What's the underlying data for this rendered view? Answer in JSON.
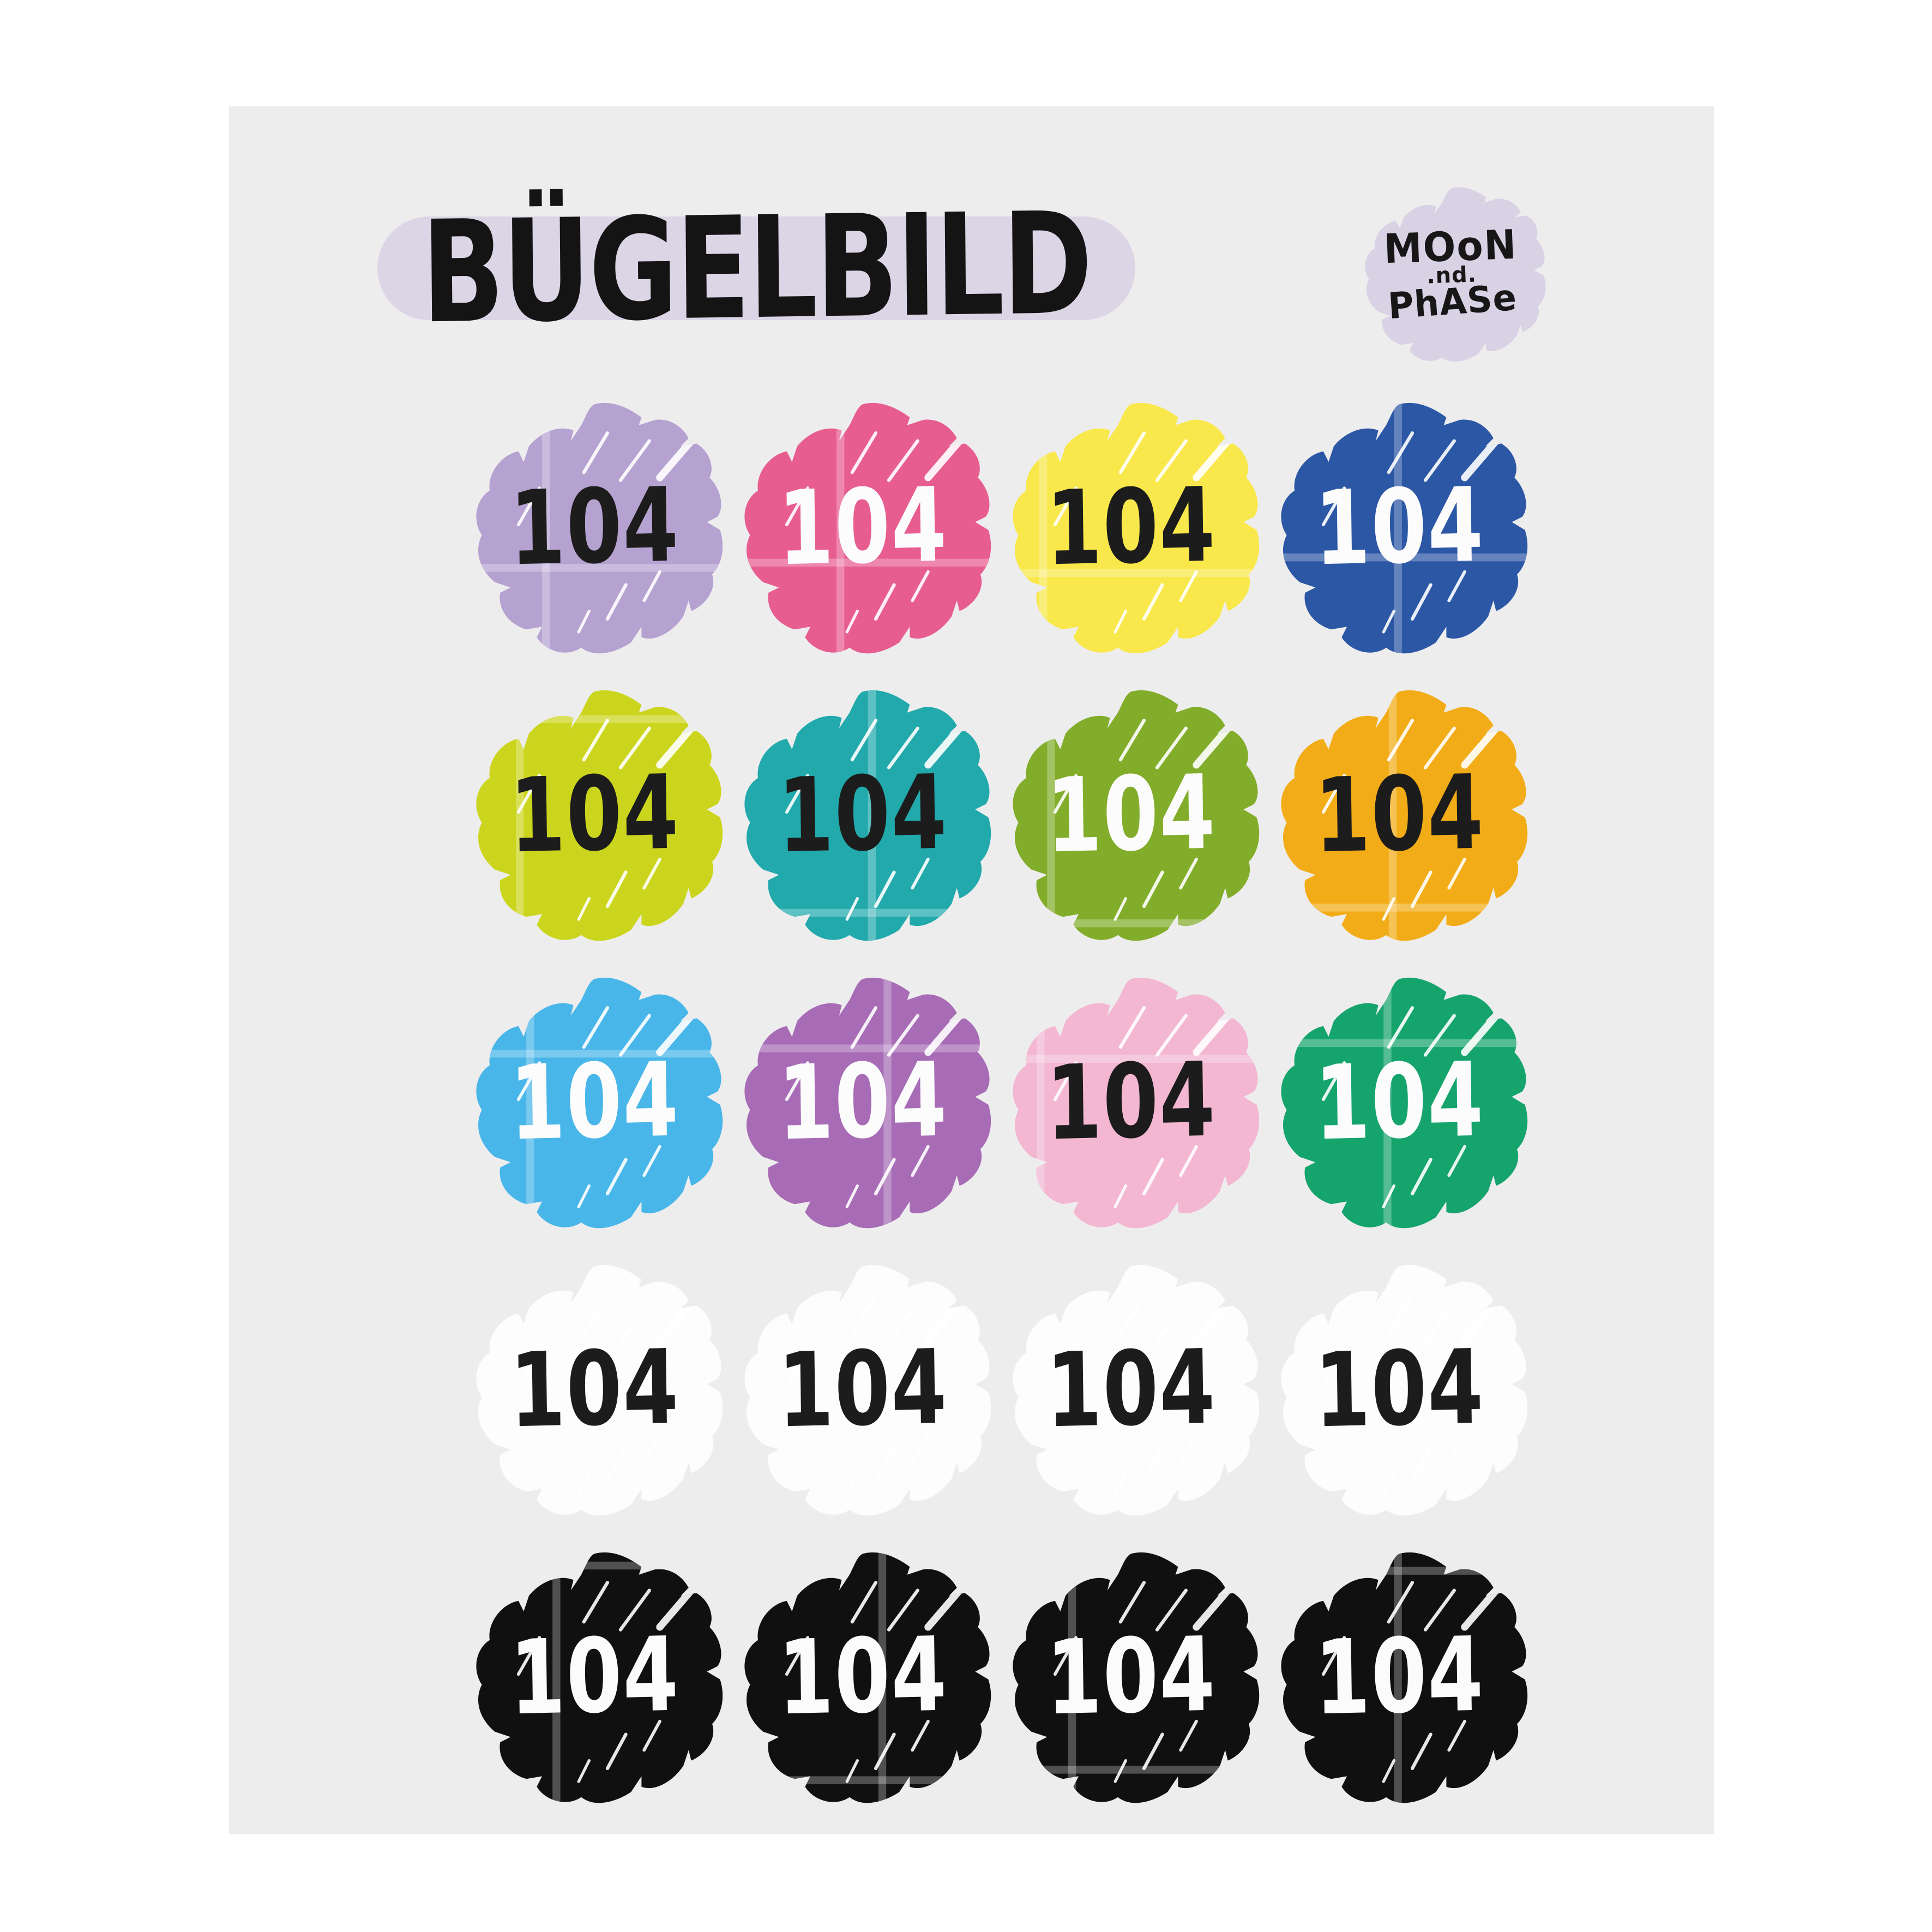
{
  "page": {
    "background": "#ffffff",
    "sheet_background": "#eeedee"
  },
  "header": {
    "title": "BÜGELBILD",
    "title_highlight_color": "#dbd5e6",
    "logo": {
      "line1": "MOoN",
      "line2": ".nd.",
      "line3": "PhASe",
      "blob_color": "#d9d2e5"
    }
  },
  "sheet": {
    "label": "104",
    "rows": 5,
    "columns": 4,
    "swatches": [
      {
        "name": "lavender",
        "color": "#b6a2d1",
        "ink": "#1c1c1c"
      },
      {
        "name": "pink",
        "color": "#e85d90",
        "ink": "#fcfcfc"
      },
      {
        "name": "yellow",
        "color": "#f9e84b",
        "ink": "#1c1c1c"
      },
      {
        "name": "royal-blue",
        "color": "#2c57a5",
        "ink": "#fcfcfc"
      },
      {
        "name": "chartreuse",
        "color": "#ccd51e",
        "ink": "#1c1c1c"
      },
      {
        "name": "teal",
        "color": "#22a9ac",
        "ink": "#1c1c1c"
      },
      {
        "name": "apple-green",
        "color": "#82ad2b",
        "ink": "#fcfcfc"
      },
      {
        "name": "amber",
        "color": "#f2ac17",
        "ink": "#1c1c1c"
      },
      {
        "name": "sky-blue",
        "color": "#49b6e9",
        "ink": "#fcfcfc"
      },
      {
        "name": "orchid",
        "color": "#a76cb5",
        "ink": "#fcfcfc"
      },
      {
        "name": "light-pink",
        "color": "#f3b7d2",
        "ink": "#1c1c1c"
      },
      {
        "name": "green",
        "color": "#16a46d",
        "ink": "#fcfcfc"
      },
      {
        "name": "white",
        "color": "#fdfdfd",
        "ink": "#1c1c1c"
      },
      {
        "name": "white",
        "color": "#fdfdfd",
        "ink": "#1c1c1c"
      },
      {
        "name": "white",
        "color": "#fdfdfd",
        "ink": "#1c1c1c"
      },
      {
        "name": "white",
        "color": "#fdfdfd",
        "ink": "#1c1c1c"
      },
      {
        "name": "black",
        "color": "#101010",
        "ink": "#fbfbfb"
      },
      {
        "name": "black",
        "color": "#101010",
        "ink": "#fbfbfb"
      },
      {
        "name": "black",
        "color": "#101010",
        "ink": "#fbfbfb"
      },
      {
        "name": "black",
        "color": "#101010",
        "ink": "#fbfbfb"
      }
    ]
  }
}
